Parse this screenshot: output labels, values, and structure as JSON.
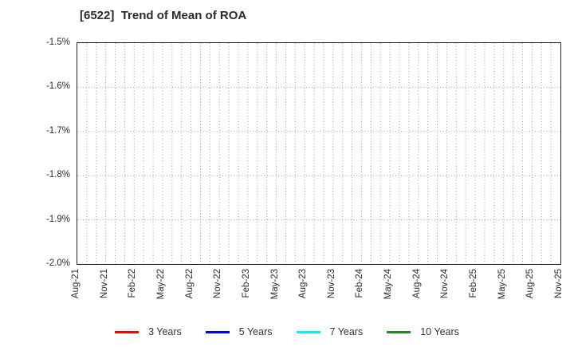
{
  "header": {
    "title": "[6522]  Trend of Mean of ROA"
  },
  "chart_data": {
    "type": "line",
    "title": "[6522]  Trend of Mean of ROA",
    "xlabel": "",
    "ylabel": "",
    "ylim": [
      -2.0,
      -1.5
    ],
    "y_tick_labels": [
      "-1.5%",
      "-1.6%",
      "-1.7%",
      "-1.8%",
      "-1.9%",
      "-2.0%"
    ],
    "x_tick_labels": [
      "Aug-21",
      "Nov-21",
      "Feb-22",
      "May-22",
      "Aug-22",
      "Nov-22",
      "Feb-23",
      "May-23",
      "Aug-23",
      "Nov-23",
      "Feb-24",
      "May-24",
      "Aug-24",
      "Nov-24",
      "Feb-25",
      "May-25",
      "Aug-25",
      "Nov-25"
    ],
    "x_months_total": 51,
    "x_label_month_step": 3,
    "grid": true,
    "grid_style": "dotted",
    "legend_position": "bottom",
    "series": [
      {
        "name": "3 Years",
        "color": "#ff0000",
        "values": []
      },
      {
        "name": "5 Years",
        "color": "#0000ff",
        "values": []
      },
      {
        "name": "7 Years",
        "color": "#00eeff",
        "values": []
      },
      {
        "name": "10 Years",
        "color": "#228b22",
        "values": []
      }
    ],
    "note_visible_data": "plot area shows no data lines within the visible y-range"
  },
  "legend": {
    "items": [
      {
        "label": "3 Years",
        "color": "#ff0000"
      },
      {
        "label": "5 Years",
        "color": "#0000ff"
      },
      {
        "label": "7 Years",
        "color": "#00eeff"
      },
      {
        "label": "10 Years",
        "color": "#228b22"
      }
    ]
  },
  "colors": {
    "grid": "#a0a0a0",
    "spine": "#222222",
    "text": "#2b2b2b"
  }
}
